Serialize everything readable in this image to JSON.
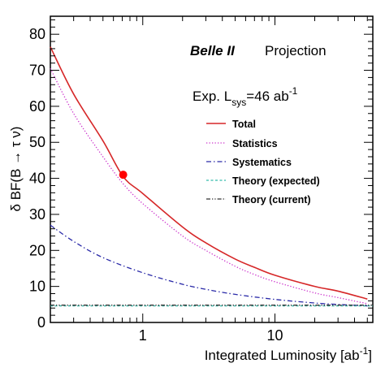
{
  "chart_data": {
    "type": "line",
    "xlabel": "Integrated Luminosity [ab",
    "xlabel_sup": "-1",
    "xlabel_tail": "]",
    "ylabel": "δ BF(B → τ ν)",
    "xscale": "log",
    "xlim": [
      0.2,
      55
    ],
    "ylim": [
      0,
      85
    ],
    "x_ticks": [
      1,
      10
    ],
    "x_tick_labels": [
      "1",
      "10"
    ],
    "y_ticks": [
      0,
      10,
      20,
      30,
      40,
      50,
      60,
      70,
      80
    ],
    "y_tick_labels": [
      "0",
      "10",
      "20",
      "30",
      "40",
      "50",
      "60",
      "70",
      "80"
    ],
    "grid": false,
    "legend_position": "right",
    "annotations": {
      "experiment": "Belle II",
      "label": "Projection",
      "lsys_prefix": "Exp. L",
      "lsys_sub": "sys",
      "lsys_value": "=46 ab",
      "lsys_sup": "-1"
    },
    "series": [
      {
        "name": "Total",
        "color": "#d62728",
        "style": "solid",
        "x": [
          0.2,
          0.3,
          0.5,
          0.711,
          1,
          2,
          3,
          5,
          7,
          10,
          20,
          30,
          50
        ],
        "y": [
          76.5,
          63.4,
          50.4,
          40.5,
          35.8,
          26.5,
          22.1,
          17.6,
          15.3,
          13.1,
          10.0,
          8.7,
          6.5
        ]
      },
      {
        "name": "Statistics",
        "color": "#cc33cc",
        "style": "dotted",
        "x": [
          0.2,
          0.3,
          0.5,
          0.711,
          1,
          2,
          3,
          5,
          7,
          10,
          20,
          30,
          50
        ],
        "y": [
          70.5,
          58.0,
          46.0,
          38.5,
          33.0,
          24.0,
          20.0,
          15.6,
          13.3,
          11.3,
          8.2,
          6.9,
          5.2
        ]
      },
      {
        "name": "Systematics",
        "color": "#2a2aa8",
        "style": "dashdot",
        "x": [
          0.2,
          0.3,
          0.5,
          1,
          2,
          3,
          5,
          10,
          20,
          30,
          50
        ],
        "y": [
          27.0,
          22.5,
          18.0,
          13.8,
          10.6,
          9.2,
          7.8,
          6.4,
          5.4,
          5.0,
          4.6
        ]
      },
      {
        "name": "Theory (expected)",
        "color": "#33bbaa",
        "style": "dashed",
        "x": [
          0.2,
          55
        ],
        "y": [
          4.6,
          4.6
        ]
      },
      {
        "name": "Theory (current)",
        "color": "#333333",
        "style": "dashdotdot",
        "x": [
          0.2,
          55
        ],
        "y": [
          4.8,
          4.8
        ]
      }
    ],
    "marker": {
      "x": 0.711,
      "y": 41.0,
      "color": "#ff0000"
    }
  }
}
